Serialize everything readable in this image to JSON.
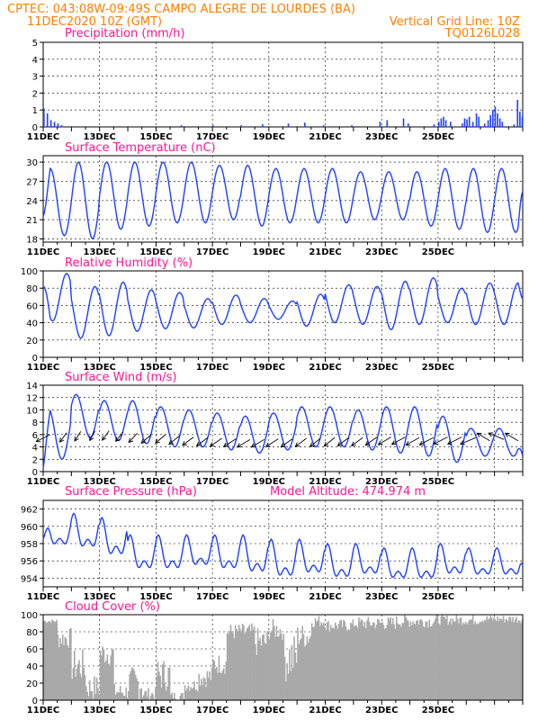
{
  "header": {
    "left_line1": "CPTEC:   043:08W-09:49S  CAMPO ALEGRE DE LOURDES (BA)",
    "left_line2": "11DEC2020 10Z (GMT)",
    "right_line2": "Vertical Grid Line: 10Z",
    "right_line3": "TQ0126L028",
    "model_altitude": "Model Altitude: 474.974 m"
  },
  "colors": {
    "header": "#ff7f00",
    "title": "#ff1493",
    "series": "#1f3fff",
    "cloud": "#a9a9a9",
    "grid": "#000000"
  },
  "x_days": [
    "11DEC",
    "13DEC",
    "15DEC",
    "17DEC",
    "19DEC",
    "21DEC",
    "23DEC",
    "25DEC"
  ],
  "chart_data": [
    {
      "id": "precip",
      "type": "bar",
      "title": "Precipitation (mm/h)",
      "x_unit": "hours since 11DEC2020 10Z",
      "yticks": [
        0,
        1,
        2,
        3,
        4,
        5
      ],
      "ylim": [
        0,
        5
      ],
      "values": [
        [
          0,
          1.1
        ],
        [
          3,
          0.8
        ],
        [
          6,
          0.4
        ],
        [
          9,
          0.3
        ],
        [
          12,
          0.2
        ],
        [
          15,
          0.1
        ],
        [
          117,
          0.1
        ],
        [
          144,
          0.1
        ],
        [
          168,
          0.1
        ],
        [
          186,
          0.15
        ],
        [
          208,
          0.2
        ],
        [
          222,
          0.25
        ],
        [
          238,
          0.1
        ],
        [
          262,
          0.1
        ],
        [
          286,
          0.3
        ],
        [
          292,
          0.4
        ],
        [
          306,
          0.5
        ],
        [
          310,
          0.2
        ],
        [
          332,
          0.15
        ],
        [
          336,
          0.3
        ],
        [
          338,
          0.5
        ],
        [
          340,
          0.6
        ],
        [
          342,
          0.4
        ],
        [
          346,
          0.3
        ],
        [
          356,
          0.2
        ],
        [
          358,
          0.5
        ],
        [
          360,
          0.45
        ],
        [
          362,
          0.6
        ],
        [
          365,
          0.3
        ],
        [
          368,
          0.8
        ],
        [
          370,
          0.6
        ],
        [
          375,
          0.2
        ],
        [
          378,
          0.4
        ],
        [
          380,
          0.7
        ],
        [
          382,
          1.0
        ],
        [
          384,
          1.2
        ],
        [
          386,
          0.8
        ],
        [
          388,
          0.5
        ],
        [
          390,
          0.3
        ],
        [
          400,
          0.15
        ],
        [
          403,
          1.6
        ],
        [
          405,
          0.9
        ],
        [
          407,
          0.6
        ]
      ]
    },
    {
      "id": "temp",
      "type": "line",
      "title": "Surface Temperature (nC)",
      "yticks": [
        18,
        21,
        24,
        27,
        30
      ],
      "ylim": [
        17.5,
        31
      ],
      "period_hours": 24,
      "daily_extremes": [
        {
          "day": 0,
          "max": 29.0,
          "min": 18.5
        },
        {
          "day": 1,
          "max": 30.0,
          "min": 18.0
        },
        {
          "day": 2,
          "max": 30.0,
          "min": 19.5
        },
        {
          "day": 3,
          "max": 30.0,
          "min": 20.0
        },
        {
          "day": 4,
          "max": 30.0,
          "min": 20.5
        },
        {
          "day": 5,
          "max": 30.0,
          "min": 20.5
        },
        {
          "day": 6,
          "max": 29.5,
          "min": 21.0
        },
        {
          "day": 7,
          "max": 29.5,
          "min": 20.0
        },
        {
          "day": 8,
          "max": 29.0,
          "min": 20.5
        },
        {
          "day": 9,
          "max": 29.0,
          "min": 20.5
        },
        {
          "day": 10,
          "max": 29.0,
          "min": 20.5
        },
        {
          "day": 11,
          "max": 28.5,
          "min": 21.0
        },
        {
          "day": 12,
          "max": 28.5,
          "min": 21.0
        },
        {
          "day": 13,
          "max": 28.5,
          "min": 20.0
        },
        {
          "day": 14,
          "max": 29.0,
          "min": 19.5
        },
        {
          "day": 15,
          "max": 29.0,
          "min": 19.0
        }
      ],
      "start_value": 21.5,
      "end_value": 25.5
    },
    {
      "id": "rh",
      "type": "line",
      "title": "Relative Humidity (%)",
      "yticks": [
        0,
        20,
        40,
        60,
        80,
        100
      ],
      "ylim": [
        0,
        100
      ],
      "daily_extremes": [
        {
          "day": 0,
          "max": 97,
          "min": 42
        },
        {
          "day": 1,
          "max": 82,
          "min": 22
        },
        {
          "day": 2,
          "max": 87,
          "min": 25
        },
        {
          "day": 3,
          "max": 78,
          "min": 30
        },
        {
          "day": 4,
          "max": 75,
          "min": 33
        },
        {
          "day": 5,
          "max": 68,
          "min": 34
        },
        {
          "day": 6,
          "max": 72,
          "min": 38
        },
        {
          "day": 7,
          "max": 68,
          "min": 40
        },
        {
          "day": 8,
          "max": 65,
          "min": 44
        },
        {
          "day": 9,
          "max": 73,
          "min": 36
        },
        {
          "day": 10,
          "max": 84,
          "min": 40
        },
        {
          "day": 11,
          "max": 82,
          "min": 38
        },
        {
          "day": 12,
          "max": 88,
          "min": 32
        },
        {
          "day": 13,
          "max": 92,
          "min": 38
        },
        {
          "day": 14,
          "max": 80,
          "min": 40
        },
        {
          "day": 15,
          "max": 86,
          "min": 38
        }
      ],
      "start_value": 82,
      "end_value": 67
    },
    {
      "id": "wind",
      "type": "line",
      "title": "Surface Wind (m/s)",
      "yticks": [
        0,
        2,
        4,
        6,
        8,
        10,
        12,
        14
      ],
      "ylim": [
        0,
        14
      ],
      "daily_extremes": [
        {
          "day": 0,
          "max": 10.5,
          "min": 2.0
        },
        {
          "day": 1,
          "max": 12.5,
          "min": 5.5
        },
        {
          "day": 2,
          "max": 11.5,
          "min": 5.0
        },
        {
          "day": 3,
          "max": 11.5,
          "min": 4.5
        },
        {
          "day": 4,
          "max": 10.5,
          "min": 4.0
        },
        {
          "day": 5,
          "max": 10.0,
          "min": 4.0
        },
        {
          "day": 6,
          "max": 9.5,
          "min": 3.5
        },
        {
          "day": 7,
          "max": 9.0,
          "min": 3.0
        },
        {
          "day": 8,
          "max": 9.5,
          "min": 3.5
        },
        {
          "day": 9,
          "max": 10.5,
          "min": 4.0
        },
        {
          "day": 10,
          "max": 10.5,
          "min": 4.0
        },
        {
          "day": 11,
          "max": 10.0,
          "min": 3.5
        },
        {
          "day": 12,
          "max": 10.5,
          "min": 3.0
        },
        {
          "day": 13,
          "max": 10.5,
          "min": 2.5
        },
        {
          "day": 14,
          "max": 9.0,
          "min": 1.5
        },
        {
          "day": 15,
          "max": 7.0,
          "min": 2.5
        }
      ],
      "start_value": 0.5,
      "end_value": 2.5,
      "vectors": [
        [
          6,
          6.0,
          225
        ],
        [
          20,
          6.3,
          250
        ],
        [
          32,
          6.5,
          252
        ],
        [
          44,
          6.6,
          255
        ],
        [
          56,
          6.6,
          250
        ],
        [
          68,
          6.4,
          248
        ],
        [
          80,
          6.2,
          245
        ],
        [
          92,
          6.0,
          240
        ],
        [
          104,
          6.0,
          240
        ],
        [
          116,
          5.8,
          238
        ],
        [
          128,
          5.6,
          236
        ],
        [
          140,
          5.5,
          236
        ],
        [
          152,
          5.4,
          234
        ],
        [
          164,
          5.3,
          232
        ],
        [
          176,
          5.2,
          230
        ],
        [
          188,
          5.2,
          230
        ],
        [
          200,
          5.3,
          232
        ],
        [
          212,
          5.3,
          235
        ],
        [
          224,
          5.4,
          236
        ],
        [
          236,
          5.4,
          238
        ],
        [
          248,
          5.5,
          238
        ],
        [
          260,
          5.5,
          236
        ],
        [
          272,
          5.5,
          235
        ],
        [
          284,
          5.6,
          235
        ],
        [
          296,
          5.6,
          230
        ],
        [
          308,
          5.6,
          228
        ],
        [
          320,
          5.5,
          228
        ],
        [
          332,
          5.5,
          226
        ],
        [
          344,
          5.6,
          226
        ],
        [
          356,
          5.6,
          226
        ],
        [
          368,
          5.5,
          220
        ],
        [
          380,
          5.0,
          130
        ],
        [
          392,
          5.2,
          140
        ],
        [
          404,
          5.0,
          130
        ]
      ]
    },
    {
      "id": "pres",
      "type": "line",
      "title": "Surface Pressure (hPa)",
      "yticks": [
        954,
        956,
        958,
        960,
        962
      ],
      "ylim": [
        953,
        963
      ],
      "semidiurnal": true,
      "daily_extremes": [
        {
          "day": 0,
          "max": 961.0,
          "min": 957.0
        },
        {
          "day": 1,
          "max": 961.5,
          "min": 956.5
        },
        {
          "day": 2,
          "max": 961.0,
          "min": 955.5
        },
        {
          "day": 3,
          "max": 959.0,
          "min": 954.0
        },
        {
          "day": 4,
          "max": 959.0,
          "min": 954.0
        },
        {
          "day": 5,
          "max": 959.0,
          "min": 954.5
        },
        {
          "day": 6,
          "max": 959.0,
          "min": 954.0
        },
        {
          "day": 7,
          "max": 959.0,
          "min": 953.5
        },
        {
          "day": 8,
          "max": 958.5,
          "min": 953.0
        },
        {
          "day": 9,
          "max": 958.5,
          "min": 953.5
        },
        {
          "day": 10,
          "max": 958.0,
          "min": 953.0
        },
        {
          "day": 11,
          "max": 958.0,
          "min": 953.5
        },
        {
          "day": 12,
          "max": 957.5,
          "min": 953.0
        },
        {
          "day": 13,
          "max": 957.5,
          "min": 953.0
        },
        {
          "day": 14,
          "max": 958.0,
          "min": 953.5
        },
        {
          "day": 15,
          "max": 957.5,
          "min": 953.5
        }
      ],
      "start_value": 958.5,
      "end_value": 955.5
    },
    {
      "id": "cloud",
      "type": "bar",
      "title": "Cloud Cover (%)",
      "yticks": [
        0,
        20,
        40,
        60,
        80,
        100
      ],
      "ylim": [
        0,
        100
      ],
      "segments": [
        [
          0,
          12,
          90,
          95
        ],
        [
          12,
          24,
          60,
          85
        ],
        [
          24,
          36,
          20,
          60
        ],
        [
          36,
          48,
          0,
          30
        ],
        [
          48,
          60,
          40,
          70
        ],
        [
          60,
          72,
          0,
          20
        ],
        [
          72,
          84,
          0,
          40
        ],
        [
          84,
          96,
          0,
          15
        ],
        [
          96,
          108,
          10,
          50
        ],
        [
          108,
          120,
          0,
          10
        ],
        [
          120,
          132,
          10,
          25
        ],
        [
          132,
          144,
          15,
          40
        ],
        [
          144,
          156,
          30,
          55
        ],
        [
          156,
          168,
          70,
          90
        ],
        [
          168,
          180,
          70,
          90
        ],
        [
          180,
          192,
          50,
          85
        ],
        [
          192,
          204,
          70,
          95
        ],
        [
          204,
          216,
          20,
          80
        ],
        [
          216,
          228,
          60,
          90
        ],
        [
          228,
          240,
          85,
          100
        ],
        [
          240,
          264,
          80,
          95
        ],
        [
          264,
          300,
          82,
          98
        ],
        [
          300,
          336,
          85,
          100
        ],
        [
          336,
          372,
          88,
          100
        ],
        [
          372,
          408,
          90,
          100
        ]
      ]
    }
  ]
}
